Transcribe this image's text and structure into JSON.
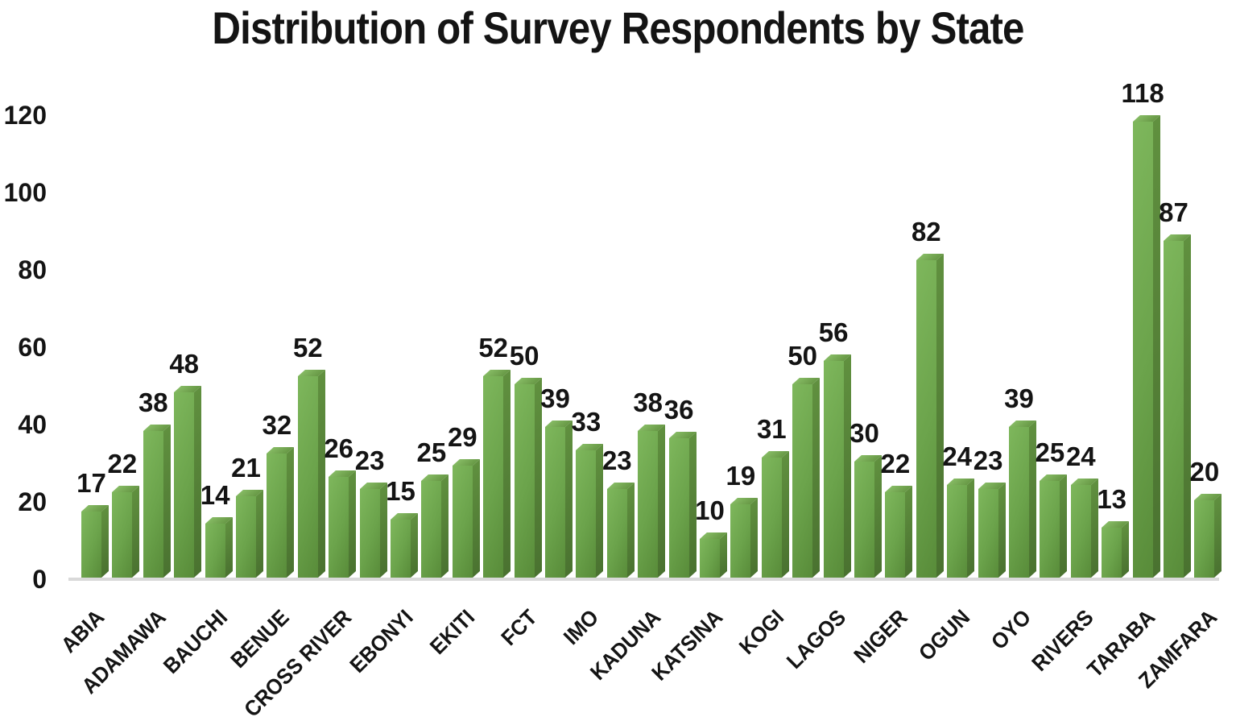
{
  "chart_data": {
    "type": "bar",
    "title": "Distribution of Survey Respondents by State",
    "values": [
      17,
      22,
      38,
      48,
      14,
      21,
      32,
      52,
      26,
      23,
      15,
      25,
      29,
      52,
      50,
      39,
      33,
      23,
      38,
      36,
      10,
      19,
      31,
      50,
      56,
      30,
      22,
      82,
      24,
      23,
      39,
      25,
      24,
      13,
      118,
      87,
      20
    ],
    "bar_count": 37,
    "x_tick_labels": [
      "ABIA",
      "ADAMAWA",
      "BAUCHI",
      "BENUE",
      "CROSS RIVER",
      "EBONYI",
      "EKITI",
      "FCT",
      "IMO",
      "KADUNA",
      "KATSINA",
      "KOGI",
      "LAGOS",
      "NIGER",
      "OGUN",
      "OYO",
      "RIVERS",
      "TARABA",
      "ZAMFARA"
    ],
    "x_label_every": 2,
    "x_label_rotation_deg": 45,
    "y_ticks": [
      0,
      20,
      40,
      60,
      80,
      100,
      120
    ],
    "ylim": [
      0,
      120
    ],
    "grid": "off",
    "legend": "none",
    "data_labels": "above bars, bold",
    "colors": {
      "bar_front_light": "#7eb75c",
      "bar_front_dark": "#588b39",
      "bar_side": "#4a7230",
      "bar_top": "#86bb64",
      "axis_line": "#d9d9d9",
      "text": "#141414",
      "background": "#ffffff"
    }
  }
}
